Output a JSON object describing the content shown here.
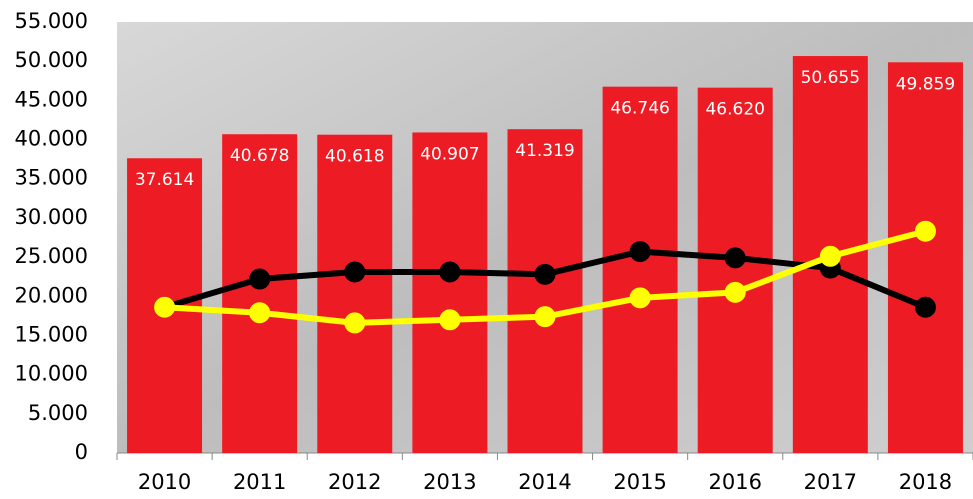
{
  "chart_data": {
    "type": "bar",
    "categories": [
      "2010",
      "2011",
      "2012",
      "2013",
      "2014",
      "2015",
      "2016",
      "2017",
      "2018"
    ],
    "series": [
      {
        "type": "bar",
        "color": "#ed1c24",
        "values": [
          37614,
          40678,
          40618,
          40907,
          41319,
          46746,
          46620,
          50655,
          49859
        ],
        "value_labels": [
          "37.614",
          "40.678",
          "40.618",
          "40.907",
          "41.319",
          "46.746",
          "46.620",
          "50.655",
          "49.859"
        ]
      },
      {
        "type": "line",
        "color": "#000000",
        "values": [
          18600,
          22200,
          23100,
          23100,
          22800,
          25700,
          24900,
          23600,
          18600
        ]
      },
      {
        "type": "line",
        "color": "#ffff00",
        "values": [
          18600,
          17900,
          16600,
          17000,
          17400,
          19800,
          20500,
          25100,
          28300
        ]
      }
    ],
    "ylim": [
      0,
      55000
    ],
    "yticks": [
      0,
      {
        "value": 5000,
        "label": "5.000"
      },
      {
        "value": 10000,
        "label": "10.000"
      },
      {
        "value": 15000,
        "label": "15.000"
      },
      {
        "value": 20000,
        "label": "20.000"
      },
      {
        "value": 25000,
        "label": "25.000"
      },
      {
        "value": 30000,
        "label": "30.000"
      },
      {
        "value": 35000,
        "label": "35.000"
      },
      {
        "value": 40000,
        "label": "40.000"
      },
      {
        "value": 45000,
        "label": "45.000"
      },
      {
        "value": 50000,
        "label": "50.000"
      },
      {
        "value": 55000,
        "label": "55.000"
      }
    ],
    "grid": false
  }
}
